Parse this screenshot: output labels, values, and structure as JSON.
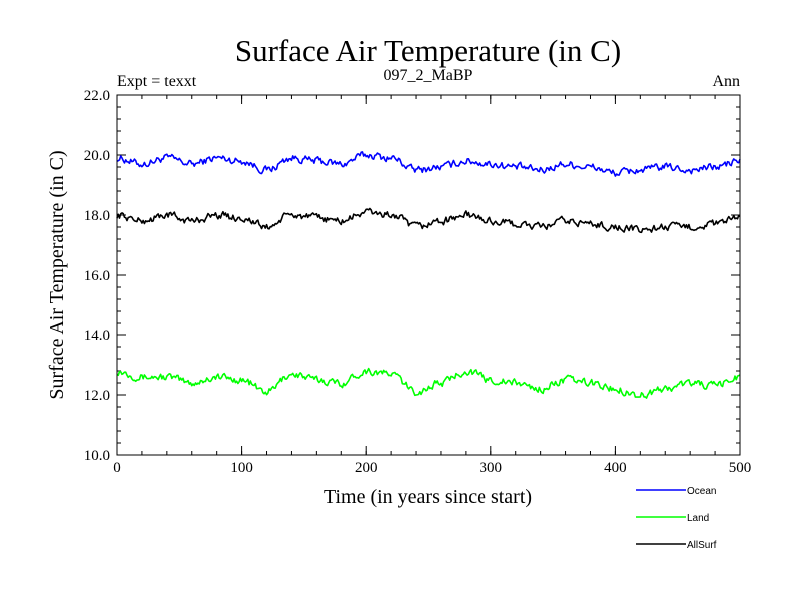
{
  "chart_data": {
    "type": "line",
    "title": "Surface Air Temperature (in C)",
    "subtitle": "097_2_MaBP",
    "left_label": "Expt = texxt",
    "right_label": "Ann",
    "xlabel": "Time (in years since start)",
    "ylabel": "Surface Air Temperature (in C)",
    "xlim": [
      0,
      500
    ],
    "ylim": [
      10.0,
      22.0
    ],
    "x_ticks": [
      0,
      100,
      200,
      300,
      400,
      500
    ],
    "x_tick_labels": [
      "0",
      "100",
      "200",
      "300",
      "400",
      "500"
    ],
    "y_ticks": [
      10.0,
      12.0,
      14.0,
      16.0,
      18.0,
      20.0,
      22.0
    ],
    "y_tick_labels": [
      "10.0",
      "12.0",
      "14.0",
      "16.0",
      "18.0",
      "20.0",
      "22.0"
    ],
    "x_minor_step": 20,
    "y_minor_step": 0.4,
    "grid": false,
    "legend_position": "bottom-right",
    "series": [
      {
        "name": "Ocean",
        "color": "#0000ff",
        "x": [
          0,
          20,
          40,
          60,
          80,
          100,
          120,
          140,
          160,
          180,
          200,
          220,
          240,
          260,
          280,
          300,
          320,
          340,
          360,
          380,
          400,
          420,
          440,
          460,
          480,
          500
        ],
        "values": [
          19.9,
          19.7,
          19.9,
          19.7,
          19.9,
          19.8,
          19.5,
          19.9,
          19.8,
          19.7,
          20.0,
          19.9,
          19.5,
          19.6,
          19.8,
          19.7,
          19.6,
          19.5,
          19.7,
          19.6,
          19.4,
          19.5,
          19.6,
          19.5,
          19.6,
          19.8
        ]
      },
      {
        "name": "Land",
        "color": "#00ff00",
        "x": [
          0,
          20,
          40,
          60,
          80,
          100,
          120,
          140,
          160,
          180,
          200,
          220,
          240,
          260,
          280,
          300,
          320,
          340,
          360,
          380,
          400,
          420,
          440,
          460,
          480,
          500
        ],
        "values": [
          12.8,
          12.6,
          12.6,
          12.4,
          12.6,
          12.5,
          12.1,
          12.7,
          12.5,
          12.4,
          12.8,
          12.7,
          12.1,
          12.4,
          12.8,
          12.5,
          12.4,
          12.2,
          12.5,
          12.4,
          12.2,
          12.0,
          12.2,
          12.4,
          12.3,
          12.6
        ]
      },
      {
        "name": "AllSurf",
        "color": "#000000",
        "x": [
          0,
          20,
          40,
          60,
          80,
          100,
          120,
          140,
          160,
          180,
          200,
          220,
          240,
          260,
          280,
          300,
          320,
          340,
          360,
          380,
          400,
          420,
          440,
          460,
          480,
          500
        ],
        "values": [
          18.0,
          17.8,
          18.0,
          17.8,
          18.0,
          17.9,
          17.6,
          18.0,
          17.9,
          17.8,
          18.1,
          18.0,
          17.6,
          17.8,
          18.0,
          17.8,
          17.7,
          17.6,
          17.8,
          17.7,
          17.6,
          17.5,
          17.6,
          17.6,
          17.7,
          17.9
        ]
      }
    ]
  }
}
